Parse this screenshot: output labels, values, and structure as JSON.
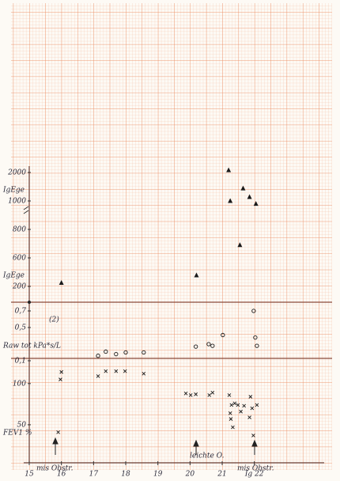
{
  "chart_data": [
    {
      "type": "scatter",
      "marker": "triangle",
      "color": "#1a1a1a",
      "yscale": "tick-spaced",
      "ylabels": [
        "IgEge",
        "IgEge"
      ],
      "x": [
        16.0,
        20.2,
        21.2,
        21.25,
        21.65,
        21.85,
        22.05,
        21.55
      ],
      "values": [
        250,
        355,
        2080,
        1000,
        1440,
        1140,
        980,
        690
      ],
      "xlim": [
        15,
        24
      ],
      "ylim": [
        200,
        2000
      ],
      "yticks": [
        200,
        600,
        800,
        1000,
        2000
      ]
    },
    {
      "type": "scatter",
      "marker": "circle",
      "color": "#1a1a1a",
      "yscale": "linear",
      "ylabel": "Raw tot kPa*s/L",
      "annotations": [
        "(2)"
      ],
      "x": [
        17.14,
        17.38,
        17.7,
        18.0,
        18.56,
        20.18,
        20.58,
        20.7,
        21.02,
        21.98,
        22.03,
        22.08
      ],
      "values": [
        0.16,
        0.21,
        0.18,
        0.2,
        0.2,
        0.27,
        0.3,
        0.28,
        0.41,
        0.7,
        0.38,
        0.28
      ],
      "xlim": [
        15,
        24
      ],
      "ylim": [
        0,
        0.8
      ],
      "yticks": [
        {
          "value": 0.1,
          "label": "0,1"
        },
        {
          "value": 0.5,
          "label": "0,5"
        },
        {
          "value": 0.7,
          "label": "0,7"
        }
      ]
    },
    {
      "type": "scatter",
      "marker": "cross",
      "color": "#1a1a1a",
      "yscale": "linear",
      "ylabel": "FEV1 %",
      "annotations": [
        "mis Obstr.",
        "leichte O.",
        "mis Obstr."
      ],
      "x": [
        16.0,
        15.97,
        17.14,
        17.38,
        17.7,
        17.98,
        18.56,
        19.87,
        20.02,
        20.18,
        20.6,
        20.7,
        21.22,
        21.29,
        21.39,
        21.49,
        21.58,
        21.68,
        21.85,
        21.88,
        21.93,
        22.08,
        21.97,
        21.25,
        21.27,
        21.33,
        15.9
      ],
      "values": [
        114,
        105,
        109,
        115,
        115,
        115,
        112,
        88,
        86,
        87,
        86,
        89,
        86,
        74,
        76,
        74,
        66,
        73,
        59,
        84,
        70,
        74,
        37,
        64,
        57,
        47,
        41
      ],
      "xlim": [
        15,
        24
      ],
      "ylim": [
        0,
        120
      ],
      "xticks": [
        15,
        16,
        17,
        18,
        19,
        20,
        21,
        {
          "value": 22,
          "label": "Ig 22"
        }
      ],
      "yticks": [
        50,
        100
      ]
    }
  ]
}
